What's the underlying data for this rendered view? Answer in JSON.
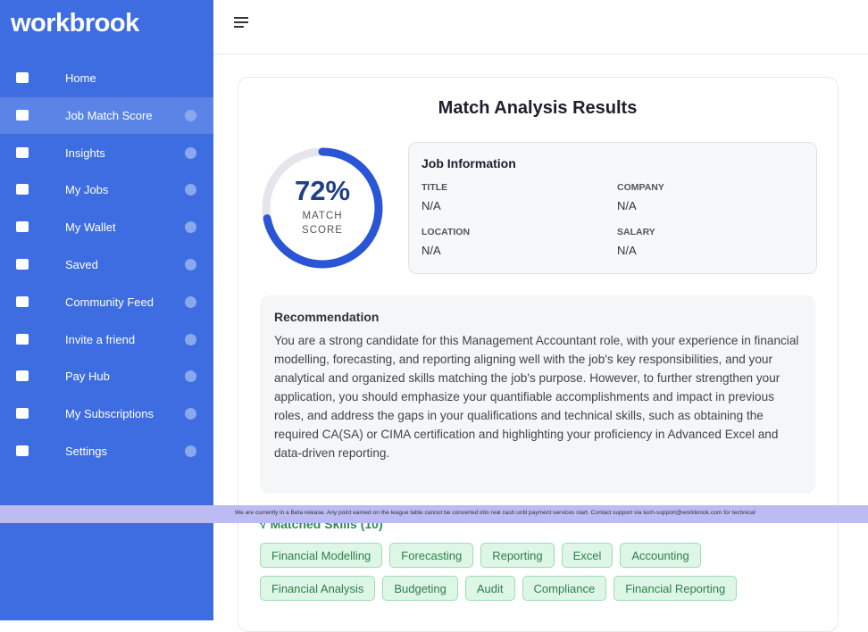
{
  "sidebar": {
    "logo": "workbrook",
    "nav": [
      {
        "label": "Home",
        "help": false
      },
      {
        "label": "Job Match Score",
        "help": true,
        "active": true
      },
      {
        "label": "Insights",
        "help": true
      },
      {
        "label": "My Jobs",
        "help": true
      },
      {
        "label": "My Wallet",
        "help": true
      },
      {
        "label": "Saved",
        "help": true
      },
      {
        "label": "Community Feed",
        "help": true
      },
      {
        "label": "Invite a friend",
        "help": true
      },
      {
        "label": "Pay Hub",
        "help": true
      },
      {
        "label": "My Subscriptions",
        "help": true
      },
      {
        "label": "Settings",
        "help": true
      }
    ]
  },
  "main": {
    "title": "Match Analysis Results",
    "score": {
      "value": 72,
      "label": "72%",
      "caption": "MATCH SCORE"
    },
    "job_info": {
      "title": "Job Information",
      "fields": [
        {
          "label": "TITLE",
          "value": "N/A"
        },
        {
          "label": "COMPANY",
          "value": "N/A"
        },
        {
          "label": "LOCATION",
          "value": "N/A"
        },
        {
          "label": "SALARY",
          "value": "N/A"
        }
      ]
    },
    "recommendation": {
      "title": "Recommendation",
      "text": "You are a strong candidate for this Management Accountant role, with your experience in financial modelling, forecasting, and reporting aligning well with the job's key responsibilities, and your analytical and organized skills matching the job's purpose. However, to further strengthen your application, you should emphasize your quantifiable accomplishments and impact in previous roles, and address the gaps in your qualifications and technical skills, such as obtaining the required CA(SA) or CIMA certification and highlighting your proficiency in Advanced Excel and data-driven reporting."
    },
    "skills": {
      "heading": "√ Matched Skills (10)",
      "items": [
        "Financial Modelling",
        "Forecasting",
        "Reporting",
        "Excel",
        "Accounting",
        "Financial Analysis",
        "Budgeting",
        "Audit",
        "Compliance",
        "Financial Reporting"
      ]
    }
  },
  "banner": {
    "text": "We are currently in a Beta release. Any point earned on the league table cannot be converted into real cash until payment services start. Contact support via tech-support@workbrook.com for technical"
  }
}
